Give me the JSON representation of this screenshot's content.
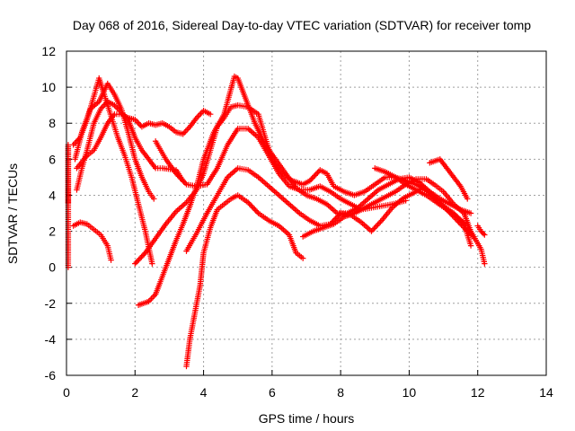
{
  "chart_data": {
    "type": "scatter",
    "title": "Day 068 of 2016, Sidereal Day-to-day VTEC variation (SDTVAR) for receiver tomp",
    "xlabel": "GPS time / hours",
    "ylabel": "SDTVAR / TECUs",
    "xlim": [
      0,
      14
    ],
    "ylim": [
      -6,
      12
    ],
    "xticks": [
      "0",
      "2",
      "4",
      "6",
      "8",
      "10",
      "12",
      "14"
    ],
    "yticks": [
      "-6",
      "-4",
      "-2",
      "0",
      "2",
      "4",
      "6",
      "8",
      "10",
      "12"
    ],
    "grid": true,
    "marker": "plus",
    "color": "#ff0000",
    "series": [
      {
        "points": [
          [
            0.2,
            6.8
          ],
          [
            0.4,
            7.2
          ],
          [
            0.6,
            8.2
          ],
          [
            0.8,
            9.5
          ],
          [
            0.95,
            10.5
          ],
          [
            1.1,
            9.6
          ],
          [
            1.3,
            8.4
          ],
          [
            1.5,
            7.2
          ],
          [
            1.7,
            6.2
          ],
          [
            1.9,
            5.0
          ],
          [
            2.1,
            3.5
          ],
          [
            2.3,
            2.0
          ],
          [
            2.5,
            0.2
          ]
        ]
      },
      {
        "points": [
          [
            0.25,
            6.0
          ],
          [
            0.45,
            7.5
          ],
          [
            0.7,
            8.8
          ],
          [
            0.95,
            9.2
          ],
          [
            1.2,
            10.2
          ],
          [
            1.4,
            9.6
          ],
          [
            1.6,
            8.8
          ],
          [
            1.8,
            7.5
          ],
          [
            2.0,
            6.0
          ],
          [
            2.2,
            5.0
          ],
          [
            2.4,
            4.2
          ],
          [
            2.55,
            3.8
          ]
        ]
      },
      {
        "points": [
          [
            0.3,
            5.5
          ],
          [
            0.6,
            6.2
          ],
          [
            0.8,
            6.5
          ],
          [
            1.0,
            7.2
          ],
          [
            1.2,
            8.0
          ],
          [
            1.4,
            8.5
          ],
          [
            1.6,
            8.5
          ],
          [
            1.8,
            8.3
          ],
          [
            2.0,
            8.2
          ],
          [
            2.2,
            7.8
          ],
          [
            2.4,
            8.0
          ],
          [
            2.6,
            7.9
          ],
          [
            2.8,
            8.0
          ],
          [
            3.0,
            7.8
          ],
          [
            3.2,
            7.5
          ],
          [
            3.4,
            7.4
          ],
          [
            3.6,
            7.8
          ],
          [
            3.8,
            8.3
          ],
          [
            4.0,
            8.7
          ],
          [
            4.2,
            8.5
          ]
        ]
      },
      {
        "points": [
          [
            0.3,
            4.3
          ],
          [
            0.45,
            5.5
          ],
          [
            0.6,
            6.5
          ],
          [
            0.8,
            8.0
          ],
          [
            1.0,
            8.8
          ],
          [
            1.2,
            9.2
          ],
          [
            1.4,
            9.0
          ],
          [
            1.6,
            8.6
          ],
          [
            1.8,
            8.2
          ],
          [
            2.0,
            7.2
          ],
          [
            2.2,
            6.5
          ],
          [
            2.4,
            6.0
          ],
          [
            2.6,
            5.5
          ],
          [
            2.8,
            5.5
          ],
          [
            3.2,
            5.4
          ],
          [
            3.4,
            4.8
          ]
        ]
      },
      {
        "points": [
          [
            0.2,
            2.3
          ],
          [
            0.4,
            2.5
          ],
          [
            0.6,
            2.4
          ],
          [
            0.8,
            2.1
          ],
          [
            1.0,
            1.8
          ],
          [
            1.2,
            1.2
          ],
          [
            1.3,
            0.4
          ]
        ]
      },
      {
        "points": [
          [
            2.6,
            7.0
          ],
          [
            2.9,
            6.0
          ],
          [
            3.2,
            5.2
          ],
          [
            3.5,
            4.6
          ],
          [
            3.8,
            4.5
          ],
          [
            4.1,
            4.6
          ],
          [
            4.4,
            5.5
          ],
          [
            4.7,
            6.8
          ],
          [
            5.0,
            7.7
          ],
          [
            5.3,
            7.7
          ],
          [
            5.6,
            7.2
          ],
          [
            5.9,
            6.2
          ],
          [
            6.2,
            5.2
          ],
          [
            6.5,
            4.5
          ],
          [
            6.8,
            4.3
          ],
          [
            7.1,
            4.3
          ],
          [
            7.4,
            4.5
          ],
          [
            7.7,
            4.2
          ],
          [
            8.0,
            3.8
          ],
          [
            8.3,
            3.5
          ],
          [
            8.6,
            3.2
          ],
          [
            8.9,
            3.3
          ],
          [
            9.2,
            3.4
          ],
          [
            9.5,
            3.5
          ],
          [
            9.9,
            3.7
          ]
        ]
      },
      {
        "points": [
          [
            2.0,
            0.2
          ],
          [
            2.3,
            0.8
          ],
          [
            2.6,
            1.6
          ],
          [
            2.9,
            2.4
          ],
          [
            3.2,
            3.1
          ],
          [
            3.5,
            3.6
          ],
          [
            3.8,
            4.3
          ],
          [
            4.0,
            5.2
          ],
          [
            4.2,
            6.5
          ],
          [
            4.4,
            7.8
          ],
          [
            4.6,
            8.3
          ],
          [
            4.8,
            8.9
          ],
          [
            5.0,
            9.0
          ],
          [
            5.3,
            8.9
          ],
          [
            5.6,
            8.5
          ],
          [
            5.8,
            7.2
          ],
          [
            6.0,
            6.0
          ],
          [
            6.3,
            5.2
          ],
          [
            6.6,
            4.8
          ],
          [
            6.9,
            4.6
          ],
          [
            7.1,
            4.8
          ],
          [
            7.4,
            5.4
          ],
          [
            7.6,
            5.2
          ],
          [
            7.8,
            4.5
          ],
          [
            8.1,
            4.2
          ],
          [
            8.4,
            4.0
          ],
          [
            8.7,
            4.2
          ],
          [
            9.0,
            4.6
          ],
          [
            9.3,
            5.0
          ],
          [
            9.6,
            5.0
          ],
          [
            9.9,
            4.8
          ],
          [
            10.2,
            4.6
          ],
          [
            10.5,
            4.3
          ],
          [
            10.8,
            3.7
          ],
          [
            11.0,
            3.4
          ],
          [
            11.3,
            3.0
          ],
          [
            11.6,
            2.4
          ],
          [
            11.8,
            1.2
          ]
        ]
      },
      {
        "points": [
          [
            2.1,
            -2.1
          ],
          [
            2.4,
            -1.9
          ],
          [
            2.6,
            -1.5
          ],
          [
            2.8,
            -0.5
          ],
          [
            3.0,
            0.5
          ],
          [
            3.2,
            1.5
          ],
          [
            3.4,
            2.4
          ],
          [
            3.6,
            3.4
          ],
          [
            3.8,
            4.5
          ],
          [
            4.0,
            6.0
          ],
          [
            4.3,
            7.5
          ],
          [
            4.6,
            8.5
          ],
          [
            4.9,
            10.6
          ],
          [
            5.0,
            10.5
          ],
          [
            5.2,
            9.5
          ],
          [
            5.5,
            8.0
          ],
          [
            5.8,
            6.8
          ],
          [
            6.1,
            6.0
          ],
          [
            6.4,
            5.2
          ],
          [
            6.7,
            4.4
          ],
          [
            7.0,
            4.0
          ],
          [
            7.3,
            3.8
          ],
          [
            7.6,
            3.5
          ],
          [
            7.9,
            3.0
          ],
          [
            8.2,
            3.0
          ],
          [
            8.5,
            3.3
          ],
          [
            8.8,
            3.8
          ],
          [
            9.1,
            4.3
          ],
          [
            9.4,
            4.6
          ],
          [
            9.7,
            4.9
          ],
          [
            10.0,
            5.0
          ],
          [
            10.3,
            4.7
          ],
          [
            10.6,
            4.2
          ],
          [
            10.9,
            3.8
          ],
          [
            11.2,
            3.5
          ],
          [
            11.5,
            3.2
          ],
          [
            11.8,
            3.0
          ]
        ]
      },
      {
        "points": [
          [
            3.5,
            -5.5
          ],
          [
            3.6,
            -4.0
          ],
          [
            3.75,
            -2.5
          ],
          [
            3.9,
            -1.0
          ],
          [
            4.0,
            0.8
          ],
          [
            4.2,
            2.2
          ],
          [
            4.4,
            3.2
          ],
          [
            4.6,
            3.5
          ],
          [
            4.8,
            3.8
          ],
          [
            5.0,
            4.0
          ],
          [
            5.3,
            3.6
          ],
          [
            5.6,
            3.0
          ],
          [
            5.9,
            2.6
          ],
          [
            6.2,
            2.3
          ],
          [
            6.5,
            1.8
          ],
          [
            6.7,
            0.8
          ],
          [
            6.9,
            0.5
          ]
        ]
      },
      {
        "points": [
          [
            3.5,
            0.9
          ],
          [
            3.8,
            1.9
          ],
          [
            4.1,
            3.0
          ],
          [
            4.4,
            4.0
          ],
          [
            4.7,
            5.0
          ],
          [
            5.0,
            5.5
          ],
          [
            5.3,
            5.4
          ],
          [
            5.6,
            5.0
          ],
          [
            5.9,
            4.5
          ],
          [
            6.2,
            4.0
          ],
          [
            6.5,
            3.5
          ],
          [
            6.8,
            3.0
          ],
          [
            7.1,
            2.6
          ],
          [
            7.4,
            2.3
          ],
          [
            7.7,
            2.4
          ],
          [
            8.0,
            3.0
          ],
          [
            8.3,
            2.9
          ],
          [
            8.6,
            2.5
          ],
          [
            8.9,
            2.0
          ],
          [
            9.2,
            2.6
          ],
          [
            9.5,
            3.3
          ],
          [
            9.8,
            3.8
          ],
          [
            10.1,
            4.1
          ],
          [
            10.4,
            4.4
          ],
          [
            10.7,
            4.0
          ],
          [
            11.0,
            3.4
          ],
          [
            11.3,
            2.8
          ],
          [
            11.6,
            2.2
          ],
          [
            11.8,
            1.8
          ]
        ]
      },
      {
        "points": [
          [
            6.9,
            1.7
          ],
          [
            7.2,
            2.0
          ],
          [
            7.5,
            2.2
          ],
          [
            7.8,
            2.4
          ],
          [
            8.1,
            2.8
          ],
          [
            8.4,
            3.0
          ],
          [
            8.7,
            3.3
          ],
          [
            9.0,
            3.6
          ],
          [
            9.3,
            3.9
          ],
          [
            9.6,
            4.2
          ],
          [
            9.9,
            4.6
          ],
          [
            10.2,
            4.9
          ],
          [
            10.5,
            4.9
          ],
          [
            10.8,
            4.5
          ],
          [
            11.0,
            4.2
          ],
          [
            11.3,
            3.5
          ],
          [
            11.6,
            3.0
          ],
          [
            11.8,
            2.0
          ],
          [
            12.1,
            1.0
          ],
          [
            12.2,
            0.2
          ]
        ]
      },
      {
        "points": [
          [
            9.0,
            5.5
          ],
          [
            9.3,
            5.3
          ],
          [
            9.6,
            5.0
          ],
          [
            9.9,
            4.6
          ],
          [
            10.2,
            4.3
          ],
          [
            10.5,
            4.0
          ],
          [
            10.8,
            3.6
          ],
          [
            11.1,
            3.2
          ],
          [
            11.4,
            2.8
          ],
          [
            11.7,
            2.3
          ],
          [
            11.9,
            1.6
          ]
        ]
      },
      {
        "points": [
          [
            10.6,
            5.8
          ],
          [
            10.9,
            6.0
          ],
          [
            11.1,
            5.5
          ],
          [
            11.3,
            5.0
          ],
          [
            11.5,
            4.5
          ],
          [
            11.7,
            3.8
          ]
        ]
      },
      {
        "points": [
          [
            12.0,
            2.3
          ],
          [
            12.1,
            2.0
          ],
          [
            12.2,
            1.8
          ]
        ]
      },
      {
        "points": [
          [
            0.05,
            3.6
          ],
          [
            0.05,
            6.8
          ],
          [
            0.05,
            0.8
          ],
          [
            0.05,
            0.0
          ]
        ]
      }
    ]
  }
}
